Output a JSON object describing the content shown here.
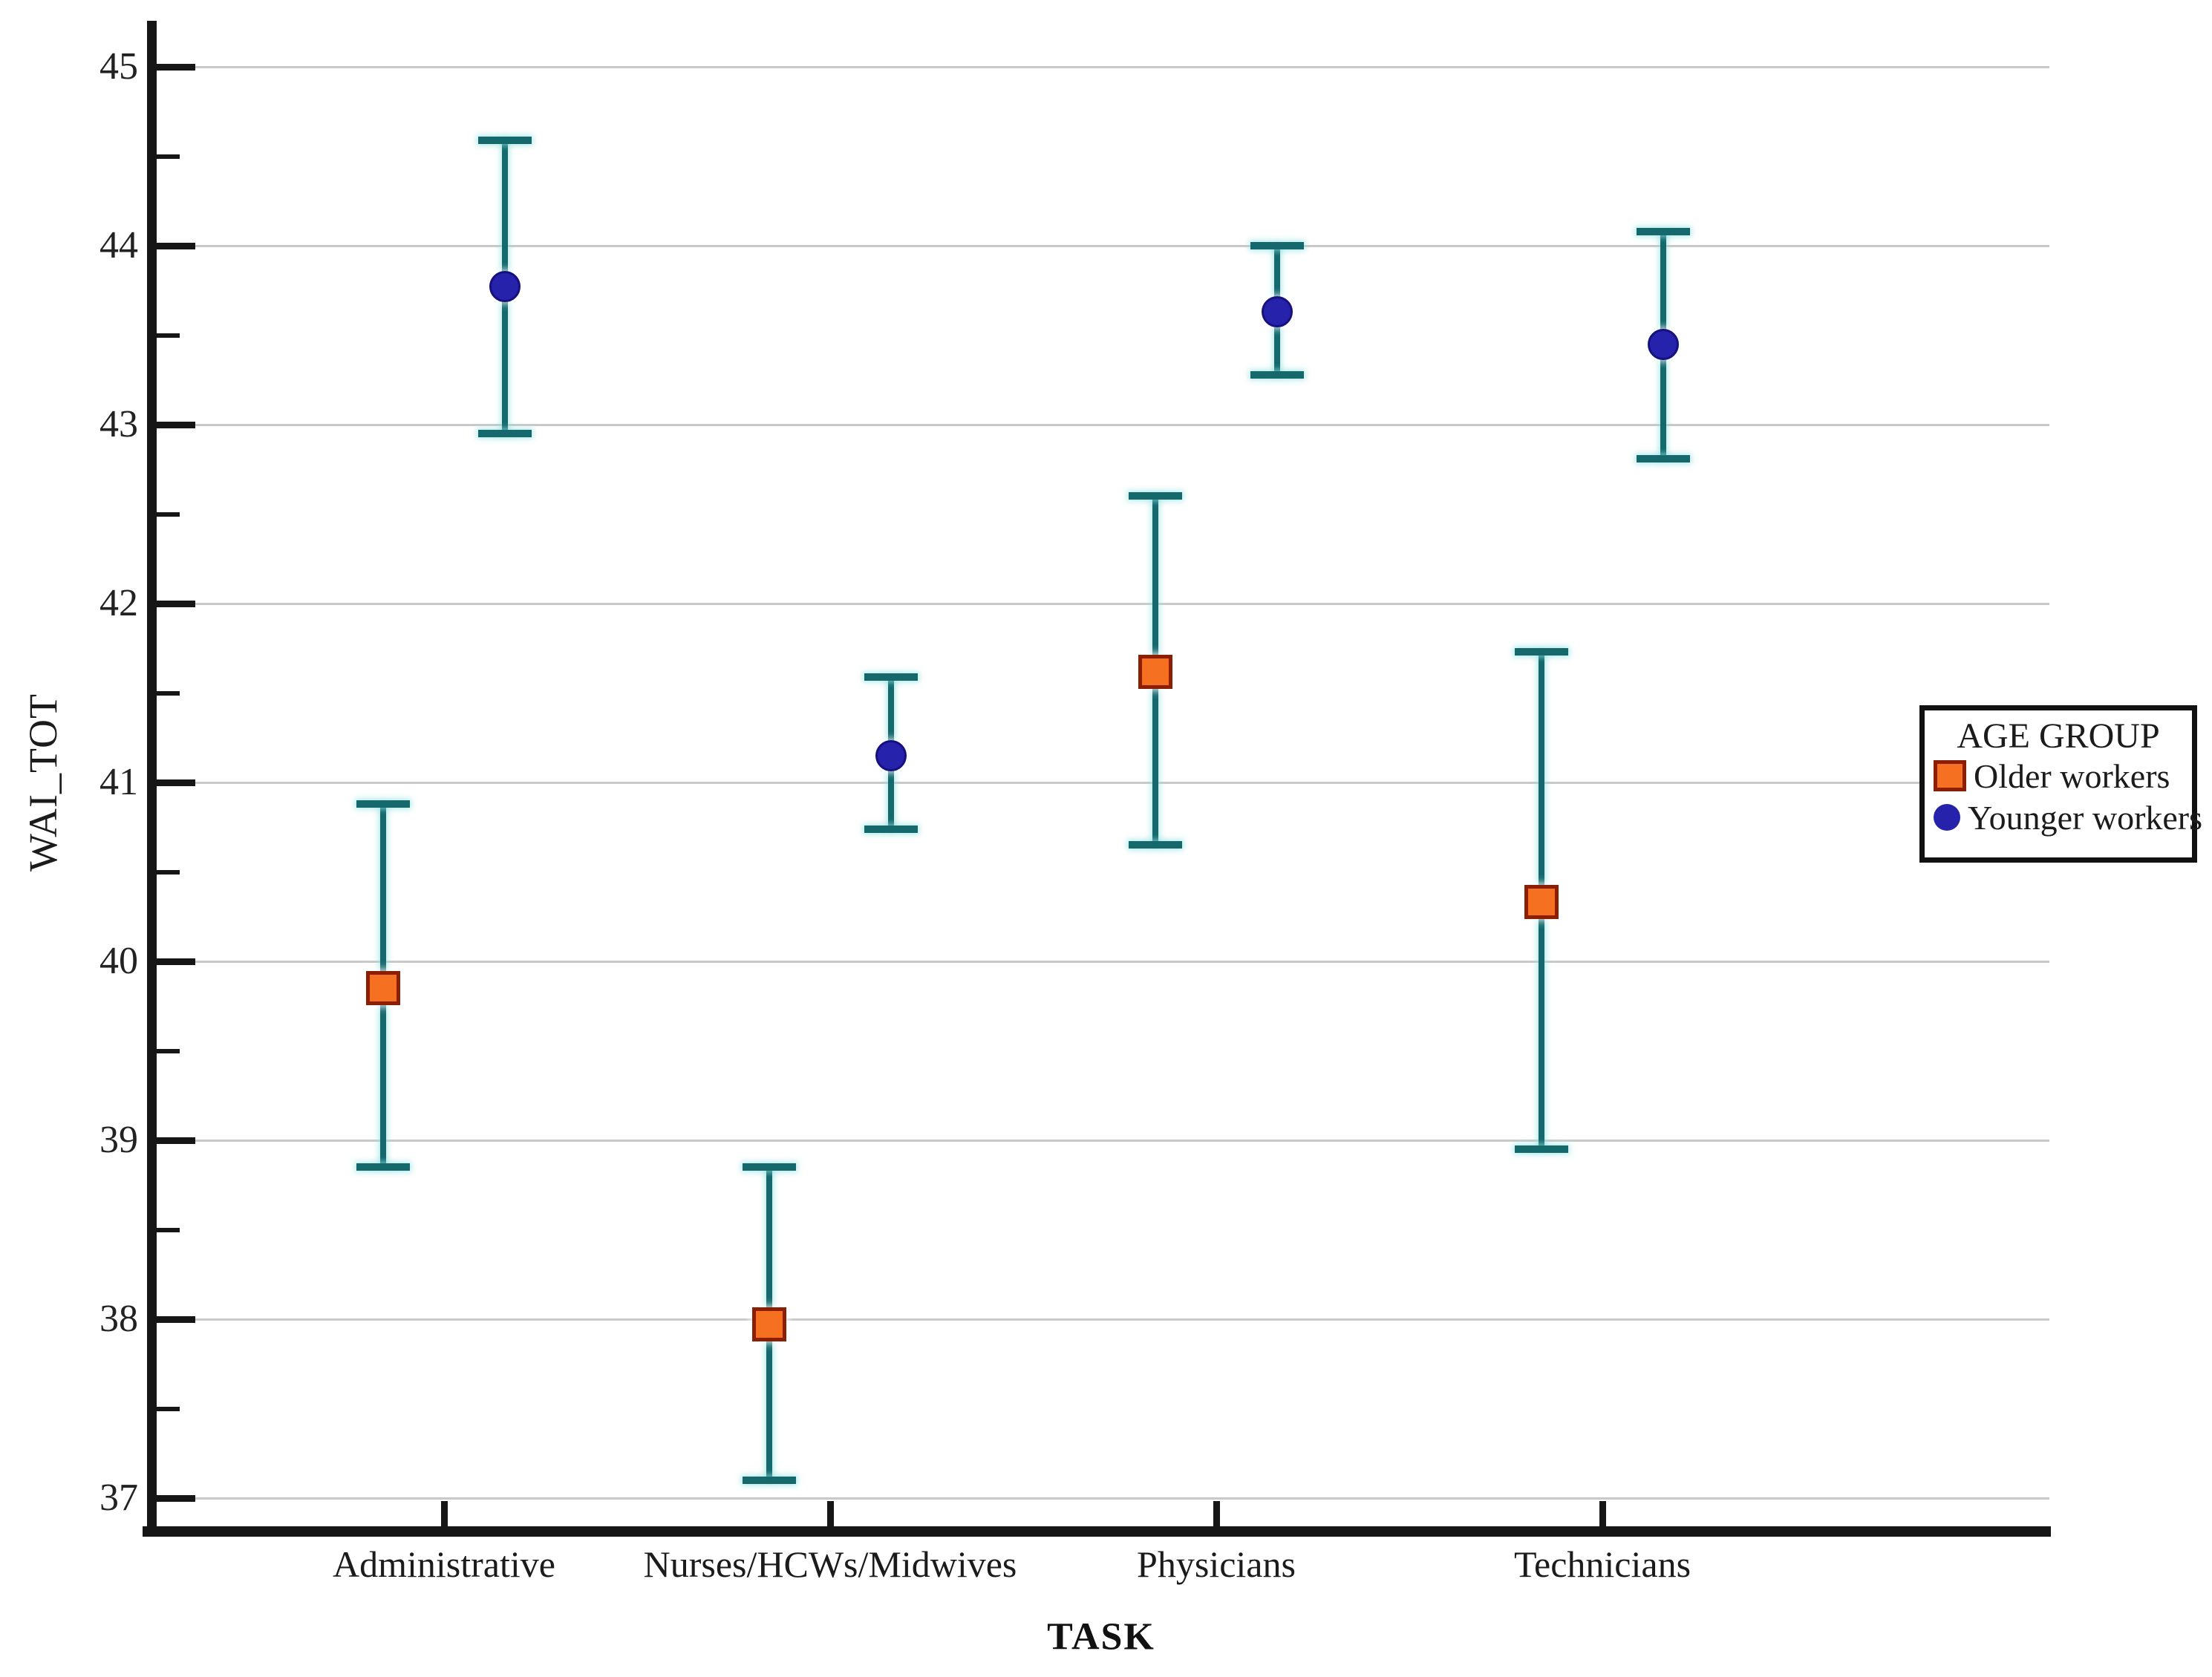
{
  "figure": {
    "background": "#ffffff"
  },
  "axes": {
    "y": {
      "label": "WAI_TOT",
      "min": 37,
      "max": 45,
      "major_tick_step": 1,
      "minor_tick_step": 0.5,
      "tick_labels": [
        "45",
        "44",
        "43",
        "42",
        "41",
        "40",
        "39",
        "38",
        "37"
      ]
    },
    "x": {
      "label": "TASK",
      "categories": [
        "Administrative",
        "Nurses/HCWs/Midwives",
        "Physicians",
        "Technicians"
      ]
    }
  },
  "legend": {
    "title": "AGE GROUP",
    "items": [
      {
        "label": "Older workers",
        "marker": "square-icon",
        "fill": "#f57020",
        "border": "#8c1e04"
      },
      {
        "label": "Younger workers",
        "marker": "circle-icon",
        "fill": "#2722ab",
        "border": "#16117e"
      }
    ]
  },
  "chart_data": {
    "type": "scatter",
    "subtype": "errorbar-means-with-ci",
    "title": "",
    "xlabel": "TASK",
    "ylabel": "WAI_TOT",
    "ylim": [
      37,
      45
    ],
    "grid": true,
    "legend_position": "right",
    "legend_title": "AGE GROUP",
    "errorbar_color": "#15696d",
    "gridline_color": "#c9c9c9",
    "categories": [
      "Administrative",
      "Nurses/HCWs/Midwives",
      "Physicians",
      "Technicians"
    ],
    "series": [
      {
        "name": "Older workers",
        "marker": "square",
        "color": "#f57020",
        "border_color": "#8c1e04",
        "values": [
          39.85,
          37.97,
          41.62,
          40.33
        ],
        "ci_low": [
          38.85,
          37.1,
          40.65,
          38.95
        ],
        "ci_high": [
          40.88,
          38.85,
          42.6,
          41.73
        ]
      },
      {
        "name": "Younger workers",
        "marker": "circle",
        "color": "#2722ab",
        "border_color": "#16117e",
        "values": [
          43.77,
          41.15,
          43.63,
          43.45
        ],
        "ci_low": [
          42.95,
          40.74,
          43.28,
          42.81
        ],
        "ci_high": [
          44.59,
          41.59,
          44.0,
          44.08
        ]
      }
    ]
  }
}
